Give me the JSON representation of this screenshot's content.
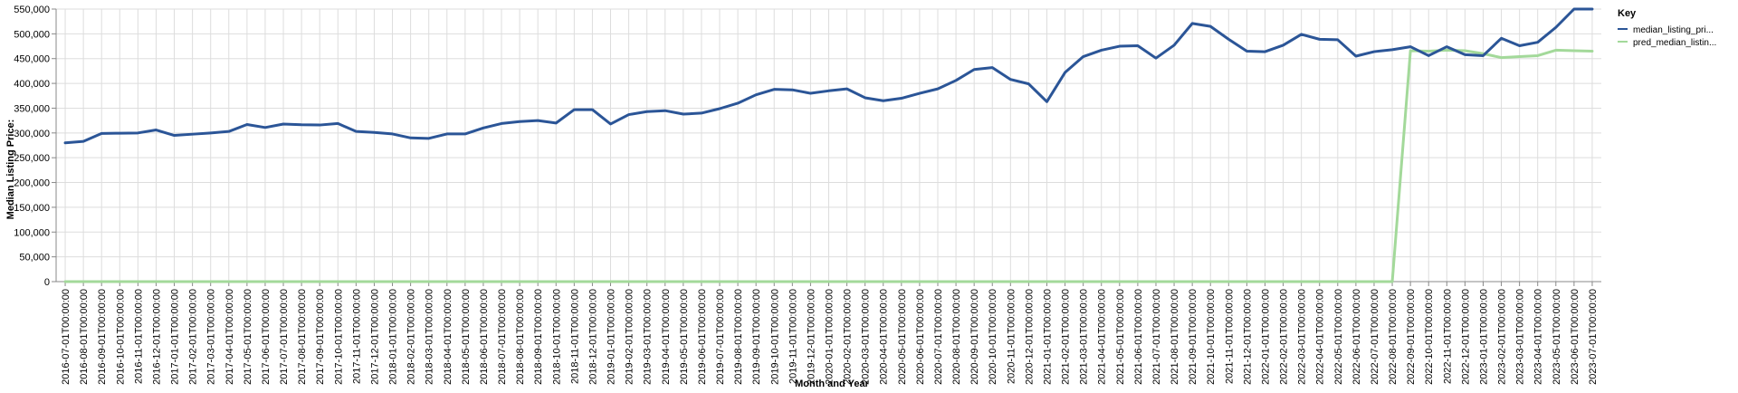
{
  "chart_data": {
    "type": "line",
    "xlabel": "Month and Year",
    "ylabel": "Median Listing Price:",
    "ylim": [
      0,
      550000
    ],
    "y_ticks": [
      0,
      50000,
      100000,
      150000,
      200000,
      250000,
      300000,
      350000,
      400000,
      450000,
      500000,
      550000
    ],
    "y_tick_labels": [
      "0",
      "50,000",
      "100,000",
      "150,000",
      "200,000",
      "250,000",
      "300,000",
      "350,000",
      "400,000",
      "450,000",
      "500,000",
      "550,000"
    ],
    "grid": true,
    "legend": {
      "title": "Key",
      "placement": "right"
    },
    "x": [
      "2016-07-01T00:00:00",
      "2016-08-01T00:00:00",
      "2016-09-01T00:00:00",
      "2016-10-01T00:00:00",
      "2016-11-01T00:00:00",
      "2016-12-01T00:00:00",
      "2017-01-01T00:00:00",
      "2017-02-01T00:00:00",
      "2017-03-01T00:00:00",
      "2017-04-01T00:00:00",
      "2017-05-01T00:00:00",
      "2017-06-01T00:00:00",
      "2017-07-01T00:00:00",
      "2017-08-01T00:00:00",
      "2017-09-01T00:00:00",
      "2017-10-01T00:00:00",
      "2017-11-01T00:00:00",
      "2017-12-01T00:00:00",
      "2018-01-01T00:00:00",
      "2018-02-01T00:00:00",
      "2018-03-01T00:00:00",
      "2018-04-01T00:00:00",
      "2018-05-01T00:00:00",
      "2018-06-01T00:00:00",
      "2018-07-01T00:00:00",
      "2018-08-01T00:00:00",
      "2018-09-01T00:00:00",
      "2018-10-01T00:00:00",
      "2018-11-01T00:00:00",
      "2018-12-01T00:00:00",
      "2019-01-01T00:00:00",
      "2019-02-01T00:00:00",
      "2019-03-01T00:00:00",
      "2019-04-01T00:00:00",
      "2019-05-01T00:00:00",
      "2019-06-01T00:00:00",
      "2019-07-01T00:00:00",
      "2019-08-01T00:00:00",
      "2019-09-01T00:00:00",
      "2019-10-01T00:00:00",
      "2019-11-01T00:00:00",
      "2019-12-01T00:00:00",
      "2020-01-01T00:00:00",
      "2020-02-01T00:00:00",
      "2020-03-01T00:00:00",
      "2020-04-01T00:00:00",
      "2020-05-01T00:00:00",
      "2020-06-01T00:00:00",
      "2020-07-01T00:00:00",
      "2020-08-01T00:00:00",
      "2020-09-01T00:00:00",
      "2020-10-01T00:00:00",
      "2020-11-01T00:00:00",
      "2020-12-01T00:00:00",
      "2021-01-01T00:00:00",
      "2021-02-01T00:00:00",
      "2021-03-01T00:00:00",
      "2021-04-01T00:00:00",
      "2021-05-01T00:00:00",
      "2021-06-01T00:00:00",
      "2021-07-01T00:00:00",
      "2021-08-01T00:00:00",
      "2021-09-01T00:00:00",
      "2021-10-01T00:00:00",
      "2021-11-01T00:00:00",
      "2021-12-01T00:00:00",
      "2022-01-01T00:00:00",
      "2022-02-01T00:00:00",
      "2022-03-01T00:00:00",
      "2022-04-01T00:00:00",
      "2022-05-01T00:00:00",
      "2022-06-01T00:00:00",
      "2022-07-01T00:00:00",
      "2022-08-01T00:00:00",
      "2022-09-01T00:00:00",
      "2022-10-01T00:00:00",
      "2022-11-01T00:00:00",
      "2022-12-01T00:00:00",
      "2023-01-01T00:00:00",
      "2023-02-01T00:00:00",
      "2023-03-01T00:00:00",
      "2023-04-01T00:00:00",
      "2023-05-01T00:00:00",
      "2023-06-01T00:00:00",
      "2023-07-01T00:00:00"
    ],
    "series": [
      {
        "name": "median_listing_pri...",
        "color": "#2b5597",
        "values": [
          280000,
          283000,
          299000,
          299500,
          300000,
          306000,
          295000,
          297500,
          300000,
          303000,
          317000,
          311000,
          318000,
          316500,
          316000,
          319000,
          303000,
          301000,
          298000,
          290000,
          289000,
          298000,
          298000,
          310000,
          319000,
          323000,
          325000,
          320000,
          347000,
          347000,
          318000,
          337000,
          343000,
          345000,
          338000,
          340000,
          349000,
          360000,
          377000,
          388000,
          387000,
          380000,
          385000,
          389000,
          371000,
          365000,
          370000,
          380000,
          389000,
          406000,
          428000,
          432000,
          408000,
          399000,
          363000,
          422000,
          454000,
          467000,
          475000,
          476000,
          451000,
          477000,
          521000,
          515000,
          489000,
          465000,
          464000,
          477000,
          499000,
          489000,
          488000,
          455000,
          464000,
          468000,
          474000,
          456000,
          474000,
          458000,
          456000,
          491000,
          476000,
          483000,
          513000,
          550000,
          550000
        ]
      },
      {
        "name": "pred_median_listin...",
        "color": "#a3d99a",
        "values": [
          0,
          0,
          0,
          0,
          0,
          0,
          0,
          0,
          0,
          0,
          0,
          0,
          0,
          0,
          0,
          0,
          0,
          0,
          0,
          0,
          0,
          0,
          0,
          0,
          0,
          0,
          0,
          0,
          0,
          0,
          0,
          0,
          0,
          0,
          0,
          0,
          0,
          0,
          0,
          0,
          0,
          0,
          0,
          0,
          0,
          0,
          0,
          0,
          0,
          0,
          0,
          0,
          0,
          0,
          0,
          0,
          0,
          0,
          0,
          0,
          0,
          0,
          0,
          0,
          0,
          0,
          0,
          0,
          0,
          0,
          0,
          0,
          0,
          0,
          466000,
          465000,
          467000,
          466000,
          460000,
          452000,
          454000,
          456000,
          467000,
          466000,
          465000
        ]
      }
    ]
  }
}
